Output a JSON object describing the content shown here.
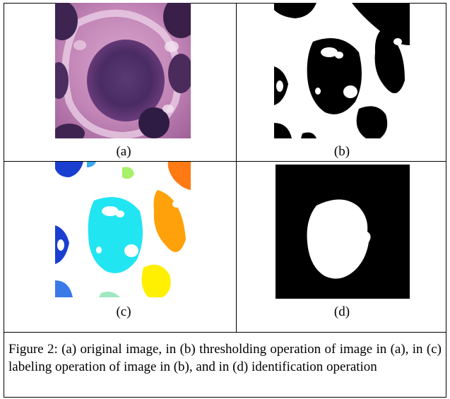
{
  "panels": [
    {
      "id": "a",
      "label": "(a)",
      "description_icon": "cell-histology-image"
    },
    {
      "id": "b",
      "label": "(b)",
      "description_icon": "threshold-binary-image"
    },
    {
      "id": "c",
      "label": "(c)",
      "description_icon": "labeled-color-image"
    },
    {
      "id": "d",
      "label": "(d)",
      "description_icon": "identified-nucleus-image"
    }
  ],
  "caption": "Figure 2: (a) original image, in (b) thresholding operation of image in (a), in (c) labeling operation of image in (b), and in (d) identification operation",
  "colors": {
    "border": "#000000",
    "tissue_pink": "#c88ab8",
    "nucleus_purple": "#4a2a5e",
    "label_blue": "#1a3fd0",
    "label_cyan": "#22e5f2",
    "label_orange": "#ffa10a",
    "label_yellow": "#ffef00",
    "label_green": "#a6f06a"
  }
}
